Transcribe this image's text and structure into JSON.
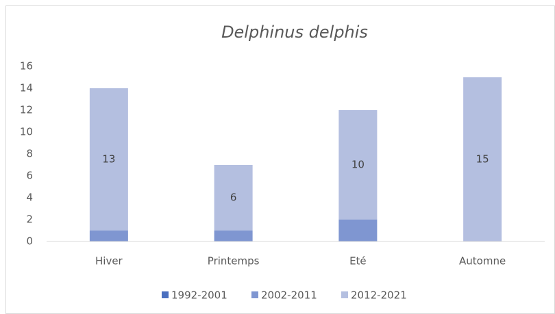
{
  "chart_data": {
    "type": "stacked_bar",
    "title": "Delphinus delphis",
    "categories": [
      "Hiver",
      "Printemps",
      "Eté",
      "Automne"
    ],
    "series": [
      {
        "name": "1992-2001",
        "color": "#4a6fbf",
        "values": [
          0,
          0,
          0,
          0
        ]
      },
      {
        "name": "2002-2011",
        "color": "#7f96d1",
        "values": [
          1,
          1,
          2,
          0
        ]
      },
      {
        "name": "2012-2021",
        "color": "#b4bfe0",
        "values": [
          13,
          6,
          10,
          15
        ],
        "data_labels": true
      }
    ],
    "ylim": [
      0,
      16
    ],
    "yticks": [
      0,
      2,
      4,
      6,
      8,
      10,
      12,
      14,
      16
    ],
    "grid": false,
    "legend": "bottom"
  }
}
